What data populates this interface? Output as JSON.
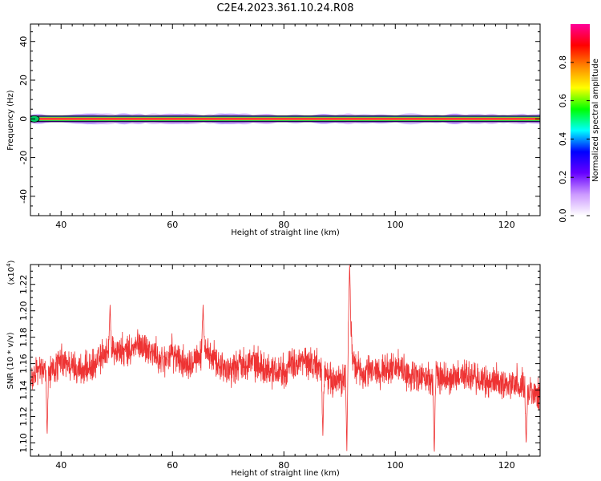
{
  "chart_data": [
    {
      "type": "heatmap",
      "title": "C2E4.2023.361.10.24.R08",
      "xlabel": "Height of straight line (km)",
      "ylabel": "Frequency (Hz)",
      "xlim": [
        34.5,
        126.0
      ],
      "ylim": [
        -50,
        49
      ],
      "x_ticks": [
        40,
        60,
        80,
        100,
        120
      ],
      "y_ticks": [
        -40,
        -20,
        0,
        20,
        40
      ],
      "y_tick_labels": [
        "-40",
        "-20",
        "0",
        "20",
        "40"
      ],
      "band_center_hz": 0,
      "colorbar": {
        "label": "Normalized spectral amplitude",
        "range": [
          0.0,
          1.0
        ],
        "ticks": [
          0.0,
          0.2,
          0.4,
          0.6,
          0.8
        ],
        "tick_labels": [
          "0.0",
          "0.2",
          "0.4",
          "0.6",
          "0.8"
        ],
        "colors": [
          "#ffffff",
          "#cc99ff",
          "#6600ff",
          "#0000ff",
          "#00ffff",
          "#00ff00",
          "#ffff00",
          "#ff8800",
          "#ff0000",
          "#ff0099"
        ]
      }
    },
    {
      "type": "line",
      "xlabel": "Height of straight line (km)",
      "ylabel": "SNR (10 * v/v)",
      "yscale_label": "(x10",
      "yscale_exp": "4",
      "yscale_close": ")",
      "xlim": [
        34.5,
        126.0
      ],
      "ylim": [
        1.09,
        1.235
      ],
      "x_ticks": [
        40,
        60,
        80,
        100,
        120
      ],
      "y_ticks": [
        1.1,
        1.12,
        1.14,
        1.16,
        1.18,
        1.2,
        1.22
      ],
      "y_tick_labels": [
        "1.10",
        "1.12",
        "1.14",
        "1.16",
        "1.18",
        "1.20",
        "1.22"
      ],
      "series_color": "#ee3333",
      "trend": {
        "x": [
          34.5,
          36,
          38,
          40,
          42,
          44,
          46,
          48,
          50,
          52,
          54,
          56,
          58,
          60,
          62,
          64,
          66,
          68,
          70,
          72,
          74,
          76,
          78,
          80,
          82,
          84,
          86,
          88,
          89.5,
          91,
          91.8,
          92.5,
          94,
          96,
          98,
          100,
          102,
          104,
          106,
          108,
          110,
          112,
          114,
          116,
          118,
          120,
          122,
          124,
          126
        ],
        "y": [
          1.148,
          1.155,
          1.152,
          1.162,
          1.158,
          1.155,
          1.158,
          1.17,
          1.17,
          1.168,
          1.175,
          1.17,
          1.162,
          1.168,
          1.16,
          1.165,
          1.168,
          1.162,
          1.155,
          1.16,
          1.162,
          1.158,
          1.155,
          1.155,
          1.16,
          1.162,
          1.158,
          1.15,
          1.145,
          1.15,
          1.195,
          1.16,
          1.152,
          1.155,
          1.155,
          1.158,
          1.152,
          1.15,
          1.148,
          1.15,
          1.148,
          1.152,
          1.15,
          1.145,
          1.148,
          1.145,
          1.145,
          1.14,
          1.135
        ]
      },
      "noise_amplitude": 0.012,
      "spikes": [
        {
          "x": 48.8,
          "y": 1.205
        },
        {
          "x": 65.5,
          "y": 1.205
        },
        {
          "x": 91.8,
          "y": 1.235
        },
        {
          "x": 91.3,
          "y": 1.092
        },
        {
          "x": 87.0,
          "y": 1.105
        },
        {
          "x": 107.0,
          "y": 1.09
        },
        {
          "x": 123.5,
          "y": 1.098
        },
        {
          "x": 37.5,
          "y": 1.105
        }
      ]
    }
  ]
}
